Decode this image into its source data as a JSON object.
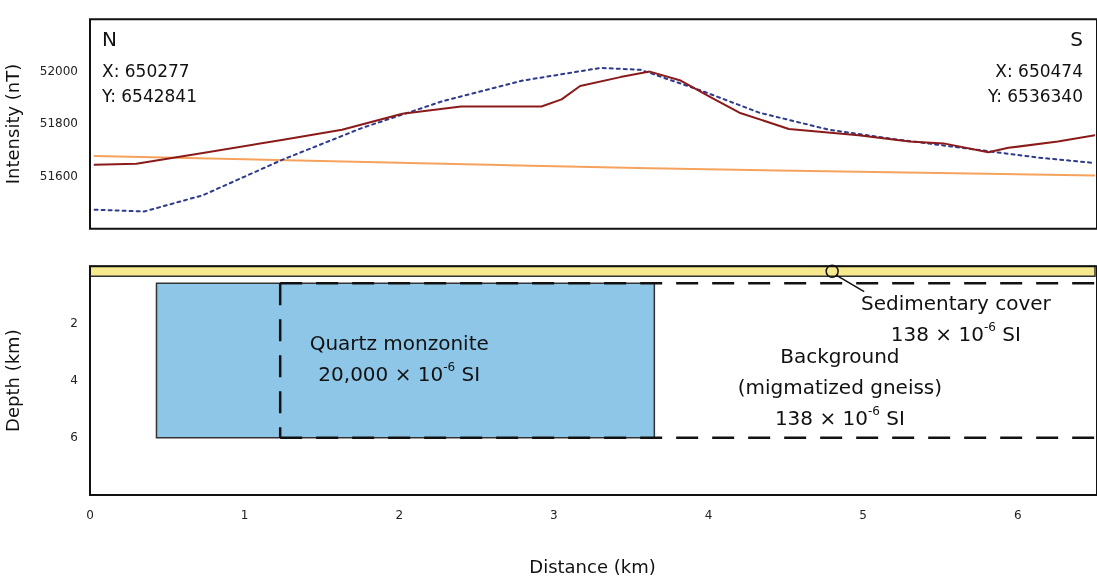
{
  "chart_data": [
    {
      "type": "line",
      "ylabel": "Intensity (nT)",
      "xlim": [
        0,
        6.5
      ],
      "ylim": [
        51400,
        52200
      ],
      "yticks": [
        51600,
        51800,
        52000
      ],
      "tick_labels": "y",
      "annotations": [
        "N",
        "X: 650277",
        "Y: 6542841",
        "S",
        "X: 650474",
        "Y: 6536340"
      ],
      "series": [
        {
          "color": "#8b1a1a",
          "line_style": "solid",
          "x": [
            0.03,
            0.3,
            0.73,
            1.25,
            1.63,
            2.02,
            2.4,
            2.92,
            3.05,
            3.17,
            3.43,
            3.62,
            3.82,
            4.01,
            4.2,
            4.52,
            4.97,
            5.3,
            5.52,
            5.81,
            5.94,
            6.26,
            6.5
          ],
          "values": [
            51644,
            51648,
            51689,
            51740,
            51778,
            51839,
            51867,
            51867,
            51894,
            51945,
            51979,
            52000,
            51966,
            51904,
            51843,
            51781,
            51757,
            51733,
            51726,
            51692,
            51709,
            51733,
            51757
          ]
        },
        {
          "color": "#2e3a8c",
          "line_style": "dotted",
          "x": [
            0.03,
            0.35,
            0.73,
            1.25,
            1.76,
            2.28,
            2.8,
            3.3,
            3.56,
            3.95,
            4.33,
            4.78,
            5.23,
            5.68,
            6.13,
            6.5
          ],
          "values": [
            51473,
            51466,
            51528,
            51665,
            51785,
            51887,
            51966,
            52014,
            52007,
            51928,
            51843,
            51778,
            51740,
            51706,
            51672,
            51651
          ]
        },
        {
          "color": "#f5a35c",
          "line_style": "solid",
          "x": [
            0.03,
            3.62,
            6.5
          ],
          "values": [
            51678,
            51631,
            51603
          ]
        }
      ]
    },
    {
      "type": "histogram",
      "bins": [
        0.43,
        3.65
      ],
      "values": [
        5.4
      ],
      "base": [
        0.6
      ],
      "color": "#8ec6e8",
      "xlabel": "Distance (km)",
      "ylabel": "Depth (km)",
      "xlim": [
        0,
        6.5
      ],
      "xticks": [
        0,
        1,
        2,
        3,
        4,
        5,
        6
      ],
      "ylim": [
        8,
        0
      ],
      "yticks": [
        2,
        4,
        6
      ],
      "bands": [
        {
          "axis": "y",
          "from": 0,
          "to": 0.35,
          "color": "#f7e98e"
        }
      ],
      "ref_lines": [
        {
          "axis": "y",
          "value": 0.6,
          "line_style": "dashed"
        },
        {
          "axis": "y",
          "value": 6.0,
          "line_style": "dashed"
        },
        {
          "axis": "x",
          "value": 1.23,
          "line_style": "dashed"
        }
      ],
      "annotations": [
        "Quartz monzonite\n20,000 × 10$^{-6}$ SI",
        "Sedimentary cover\n138 × 10$^{-6}$ SI",
        "Background\n(migmatized gneiss)\n138 × 10$^{-6}$ SI"
      ]
    }
  ]
}
